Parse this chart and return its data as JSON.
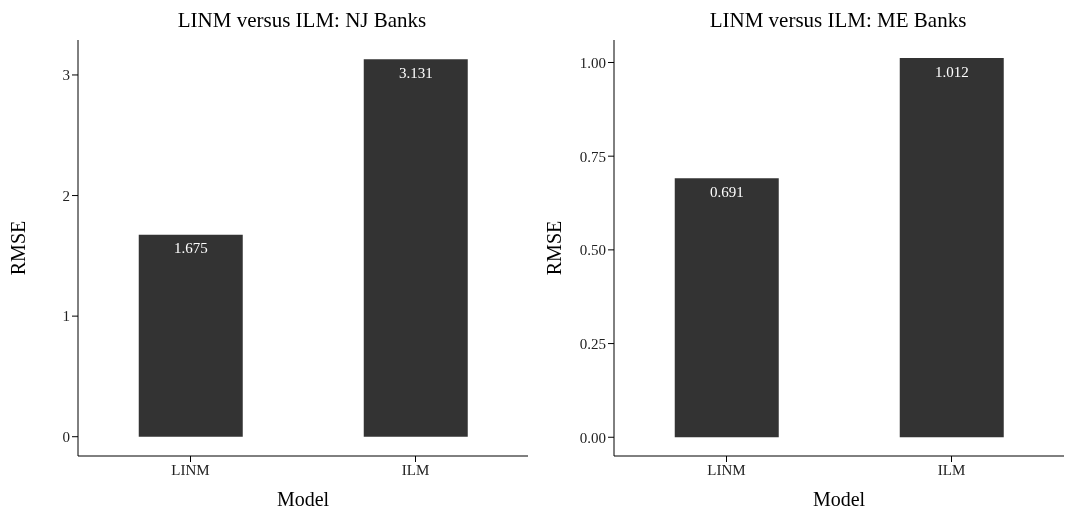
{
  "chart_data": [
    {
      "type": "bar",
      "title": "LINM versus ILM: NJ Banks",
      "xlabel": "Model",
      "ylabel": "RMSE",
      "categories": [
        "LINM",
        "ILM"
      ],
      "values": [
        1.675,
        3.131
      ],
      "color": "#333333",
      "ylim": [
        -0.16,
        3.29
      ],
      "yticks": [
        0,
        1,
        2,
        3
      ],
      "grid": false,
      "data_labels": true
    },
    {
      "type": "bar",
      "title": "LINM versus ILM: ME Banks",
      "xlabel": "Model",
      "ylabel": "RMSE",
      "categories": [
        "LINM",
        "ILM"
      ],
      "values": [
        0.691,
        1.012
      ],
      "color": "#333333",
      "ylim": [
        -0.05,
        1.06
      ],
      "yticks": [
        {
          "value": 0,
          "label": "0.00"
        },
        {
          "value": 0.25,
          "label": "0.25"
        },
        {
          "value": 0.5,
          "label": "0.50"
        },
        {
          "value": 0.75,
          "label": "0.75"
        },
        {
          "value": 1,
          "label": "1.00"
        }
      ],
      "grid": false,
      "data_labels": true
    }
  ]
}
